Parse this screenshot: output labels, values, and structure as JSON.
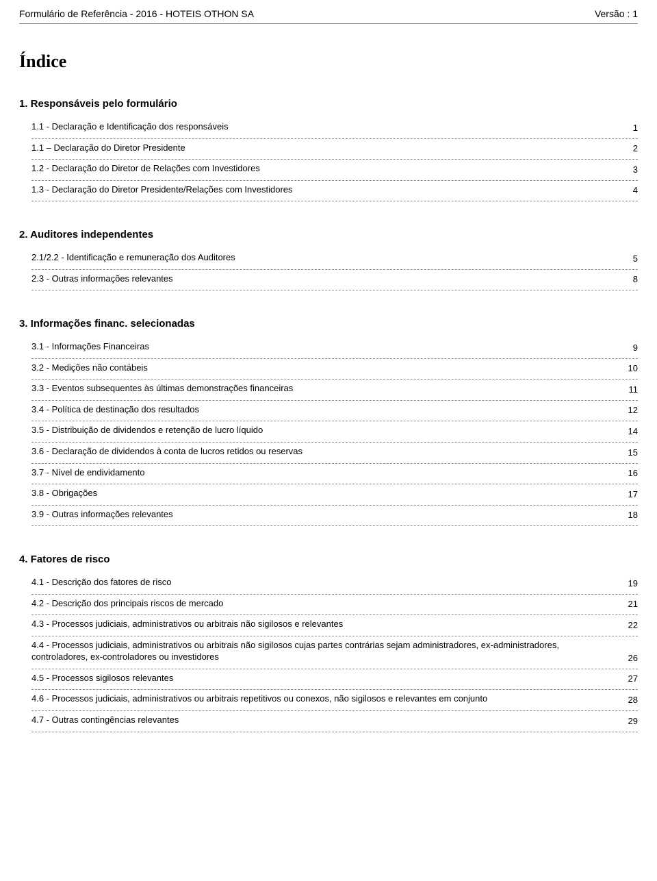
{
  "header": {
    "left": "Formulário de Referência - 2016 - HOTEIS OTHON SA",
    "right": "Versão : 1"
  },
  "title": "Índice",
  "sections": [
    {
      "heading": "1. Responsáveis pelo formulário",
      "items": [
        {
          "label": "1.1 - Declaração e Identificação dos responsáveis",
          "page": "1"
        },
        {
          "label": "1.1 – Declaração do Diretor Presidente",
          "page": "2"
        },
        {
          "label": "1.2 - Declaração do Diretor de Relações com Investidores",
          "page": "3"
        },
        {
          "label": "1.3 - Declaração do Diretor Presidente/Relações com Investidores",
          "page": "4"
        }
      ]
    },
    {
      "heading": "2. Auditores independentes",
      "items": [
        {
          "label": "2.1/2.2 - Identificação e remuneração dos Auditores",
          "page": "5"
        },
        {
          "label": "2.3 - Outras informações relevantes",
          "page": "8"
        }
      ]
    },
    {
      "heading": "3. Informações financ. selecionadas",
      "items": [
        {
          "label": "3.1 - Informações Financeiras",
          "page": "9"
        },
        {
          "label": "3.2 - Medições não contábeis",
          "page": "10"
        },
        {
          "label": "3.3 - Eventos subsequentes às últimas demonstrações financeiras",
          "page": "11"
        },
        {
          "label": "3.4 - Política de destinação dos resultados",
          "page": "12"
        },
        {
          "label": "3.5 - Distribuição de dividendos e retenção de lucro líquido",
          "page": "14"
        },
        {
          "label": "3.6 - Declaração de dividendos à conta de lucros retidos ou reservas",
          "page": "15"
        },
        {
          "label": "3.7 - Nível de endividamento",
          "page": "16"
        },
        {
          "label": "3.8 - Obrigações",
          "page": "17"
        },
        {
          "label": "3.9 - Outras informações relevantes",
          "page": "18"
        }
      ]
    },
    {
      "heading": "4. Fatores de risco",
      "items": [
        {
          "label": "4.1 - Descrição dos fatores de risco",
          "page": "19"
        },
        {
          "label": "4.2 - Descrição dos principais riscos de mercado",
          "page": "21"
        },
        {
          "label": "4.3 - Processos judiciais, administrativos ou arbitrais não sigilosos e relevantes",
          "page": "22"
        },
        {
          "label": "4.4 - Processos judiciais, administrativos ou arbitrais não sigilosos cujas partes contrárias sejam administradores, ex-administradores, controladores, ex-controladores ou investidores",
          "page": "26"
        },
        {
          "label": "4.5 - Processos sigilosos relevantes",
          "page": "27"
        },
        {
          "label": "4.6 - Processos judiciais, administrativos ou arbitrais repetitivos ou conexos, não sigilosos e relevantes em conjunto",
          "page": "28"
        },
        {
          "label": "4.7 - Outras contingências relevantes",
          "page": "29"
        }
      ]
    }
  ],
  "styling": {
    "background_color": "#ffffff",
    "text_color": "#000000",
    "divider_color": "#888888",
    "title_font": "serif",
    "title_fontsize_pt": 26,
    "heading_fontsize_pt": 15,
    "body_fontsize_pt": 13,
    "border_style": "dashed"
  }
}
